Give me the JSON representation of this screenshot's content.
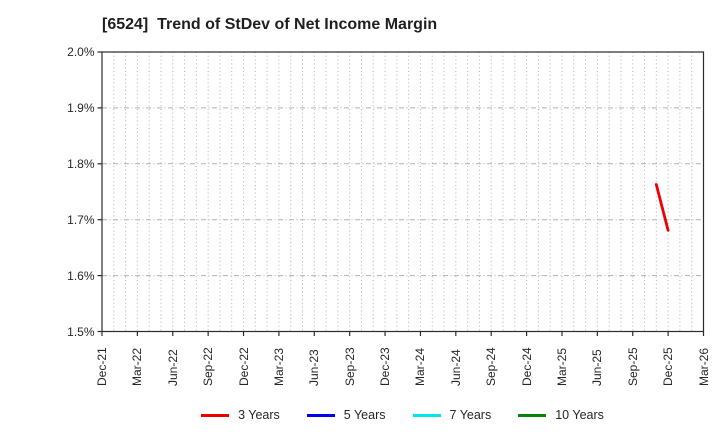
{
  "chart_data": {
    "type": "line",
    "title": "[6524]  Trend of StDev of Net Income Margin",
    "xlabel": "",
    "ylabel": "",
    "y_unit": "%",
    "ylim": [
      1.5,
      2.0
    ],
    "y_ticks": [
      "2.0%",
      "1.9%",
      "1.8%",
      "1.7%",
      "1.6%",
      "1.5%"
    ],
    "y_grid_values": [
      1.9,
      1.8,
      1.7,
      1.6
    ],
    "x_ticks": [
      "Dec-21",
      "Mar-22",
      "Jun-22",
      "Sep-22",
      "Dec-22",
      "Mar-23",
      "Jun-23",
      "Sep-23",
      "Dec-23",
      "Mar-24",
      "Jun-24",
      "Sep-24",
      "Dec-24",
      "Mar-25",
      "Jun-25",
      "Sep-25",
      "Dec-25",
      "Mar-26"
    ],
    "x_range_months": [
      "Dec-21",
      "Mar-26"
    ],
    "x_minor_grid": "monthly",
    "grid": {
      "on": true,
      "color": "#b0b0b0",
      "horizontal_style": "dash-dot",
      "vertical_style": "dotted"
    },
    "axis_color": "#2b2b2b",
    "background": "#ffffff",
    "legend": {
      "position": "bottom",
      "entries": [
        {
          "label": "3 Years",
          "color": "#ee0000"
        },
        {
          "label": "5 Years",
          "color": "#0000ee"
        },
        {
          "label": "7 Years",
          "color": "#00e5ee"
        },
        {
          "label": "10 Years",
          "color": "#0b800b"
        }
      ]
    },
    "series": [
      {
        "name": "3 Years",
        "color": "#ee0000",
        "points": [
          [
            "Nov-25",
            1.763
          ],
          [
            "Dec-25",
            1.681
          ]
        ]
      },
      {
        "name": "5 Years",
        "color": "#0000ee",
        "points": []
      },
      {
        "name": "7 Years",
        "color": "#00e5ee",
        "points": []
      },
      {
        "name": "10 Years",
        "color": "#0b800b",
        "points": []
      }
    ]
  }
}
